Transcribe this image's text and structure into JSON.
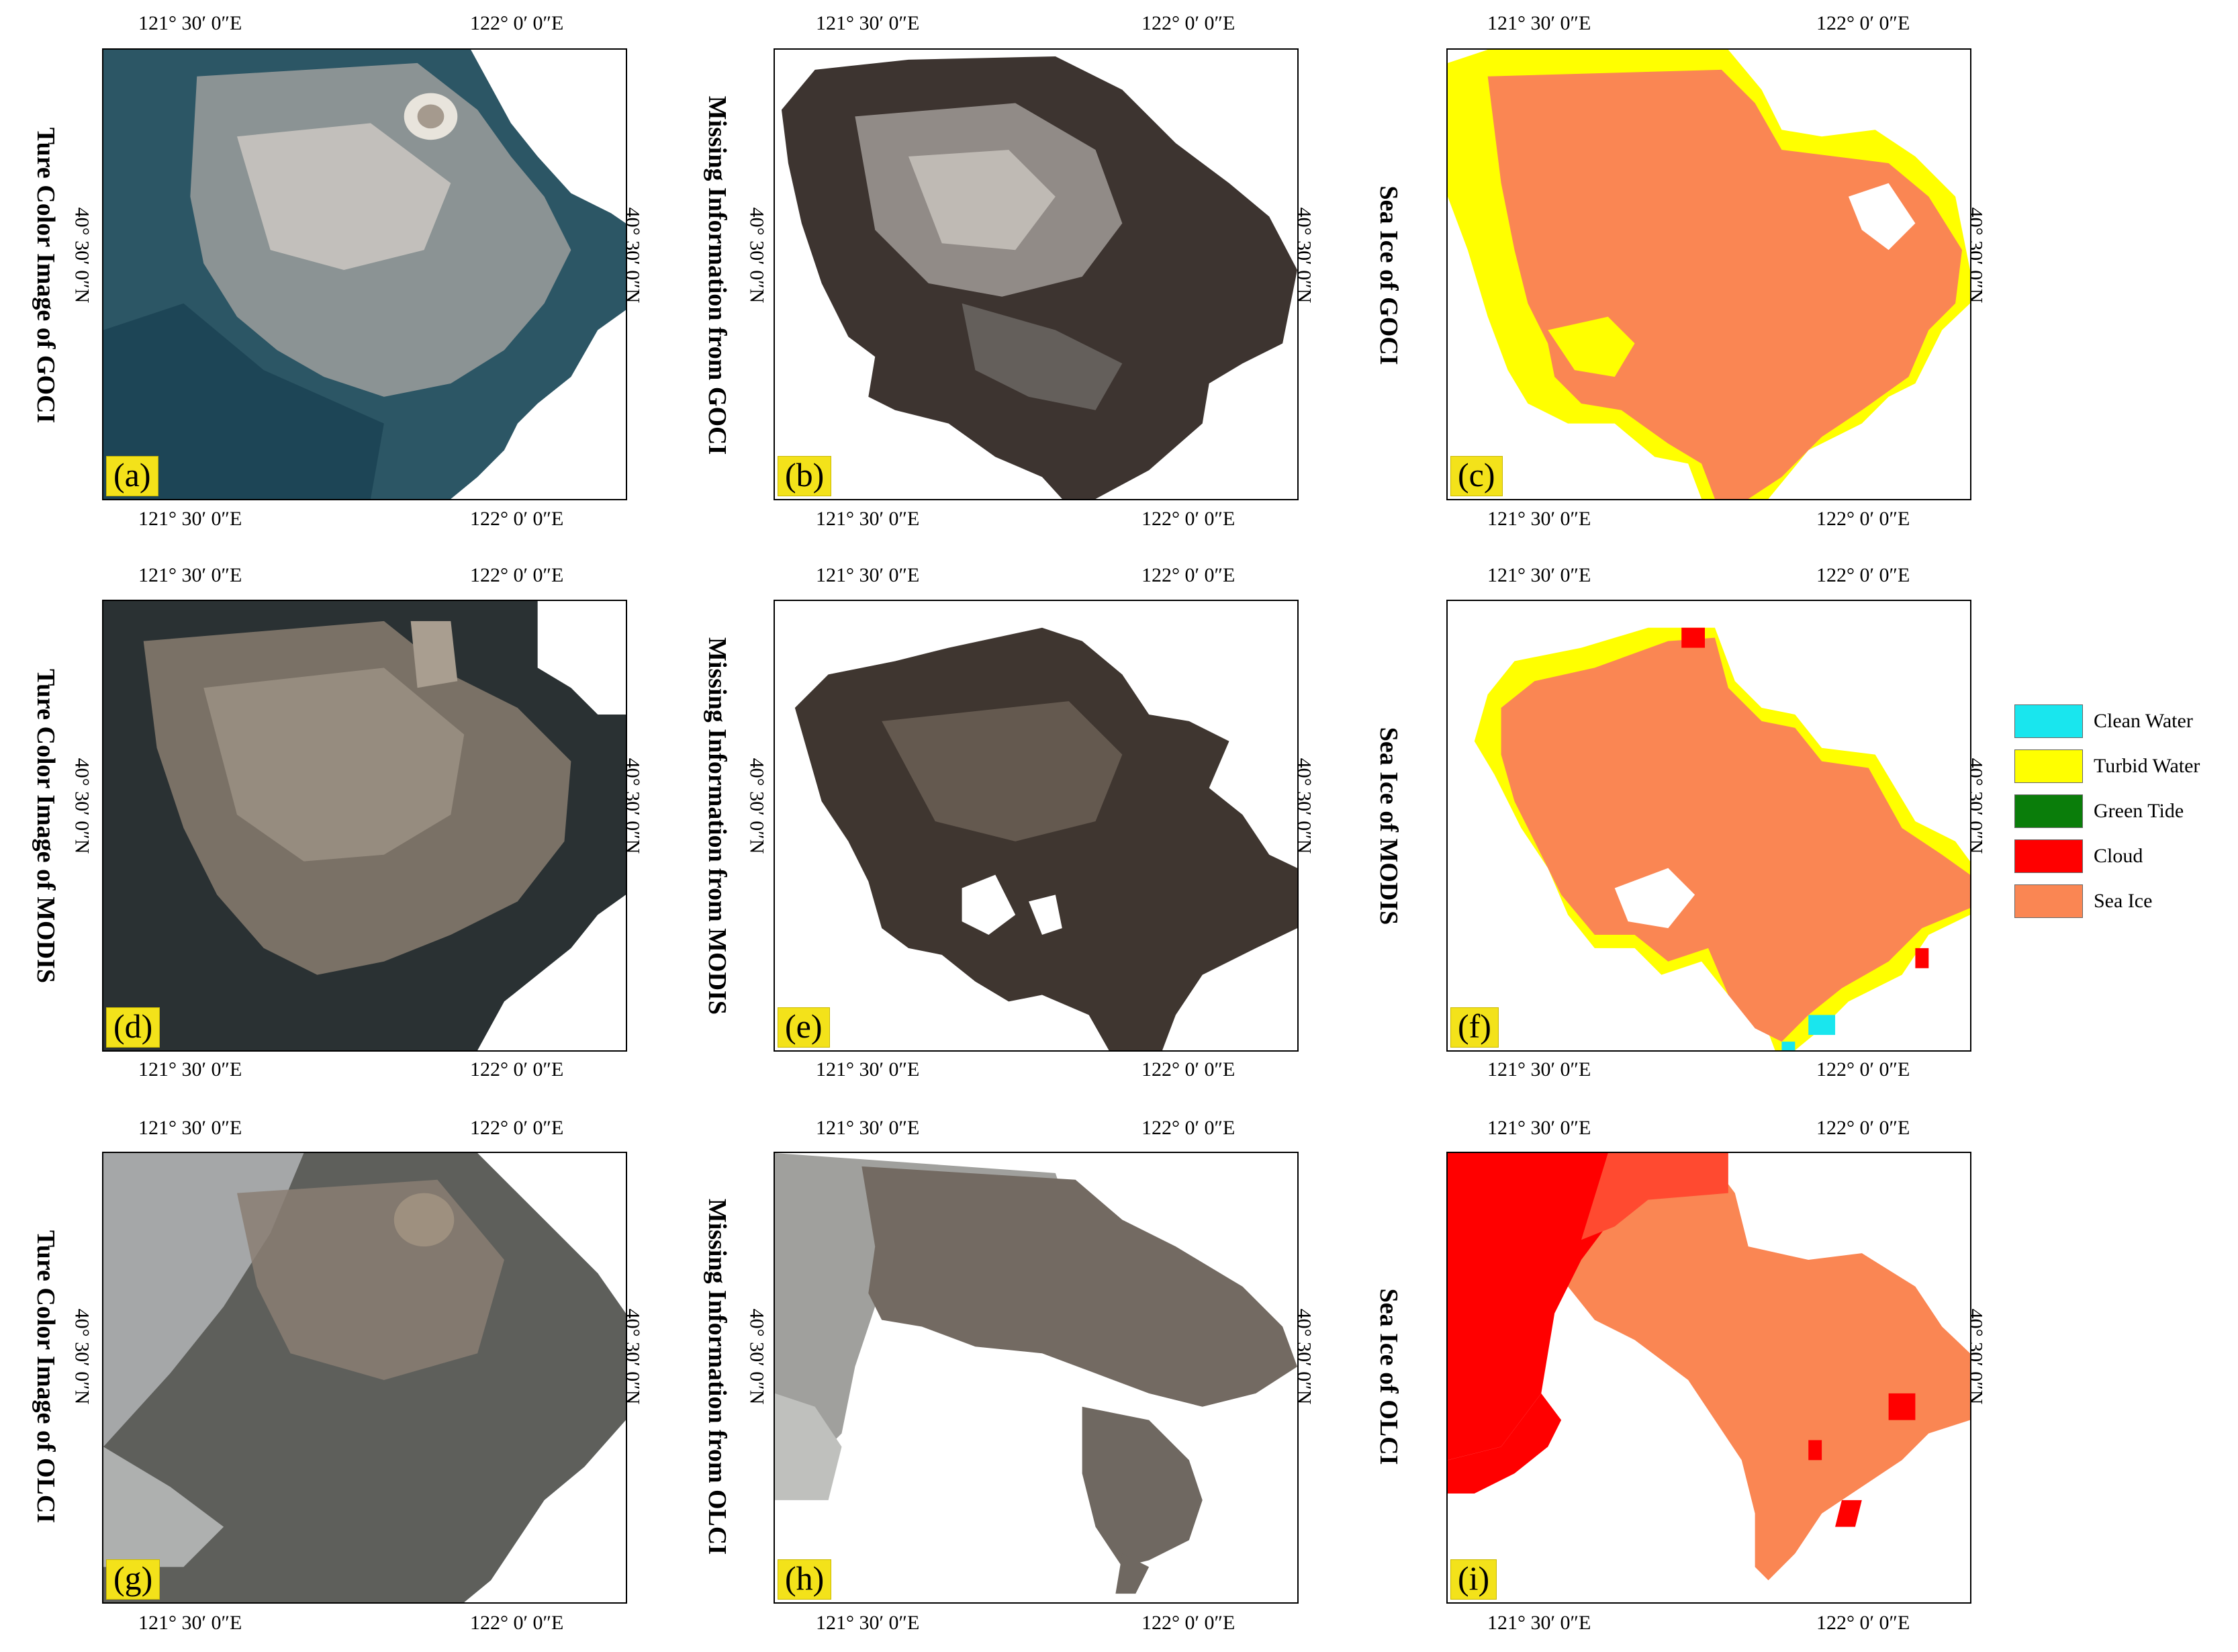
{
  "axis_labels": {
    "lon_left": "121° 30′ 0″E",
    "lon_right": "122° 0′ 0″E",
    "lat": "40° 30′ 0″N"
  },
  "panels": [
    {
      "letter": "(a)",
      "title": "Ture Color Image of GOCI",
      "kind": "truecolor-goci"
    },
    {
      "letter": "(b)",
      "title": "Missing Information from GOCI",
      "kind": "missing-goci"
    },
    {
      "letter": "(c)",
      "title": "Sea Ice of GOCI",
      "kind": "class-goci"
    },
    {
      "letter": "(d)",
      "title": "Ture Color Image of MODIS",
      "kind": "truecolor-modis"
    },
    {
      "letter": "(e)",
      "title": "Missing Information from MODIS",
      "kind": "missing-modis"
    },
    {
      "letter": "(f)",
      "title": "Sea Ice of MODIS",
      "kind": "class-modis"
    },
    {
      "letter": "(g)",
      "title": "Ture Color Image of OLCI",
      "kind": "truecolor-olci"
    },
    {
      "letter": "(h)",
      "title": "Missing Information from OLCI",
      "kind": "missing-olci"
    },
    {
      "letter": "(i)",
      "title": "Sea Ice of OLCI",
      "kind": "class-olci"
    }
  ],
  "legend": [
    {
      "label": "Clean Water",
      "color": "#19e6ee"
    },
    {
      "label": "Turbid Water",
      "color": "#ffff00"
    },
    {
      "label": "Green Tide",
      "color": "#0a7d0a"
    },
    {
      "label": "Cloud",
      "color": "#ff0000"
    },
    {
      "label": "Sea Ice",
      "color": "#fa8653"
    }
  ]
}
